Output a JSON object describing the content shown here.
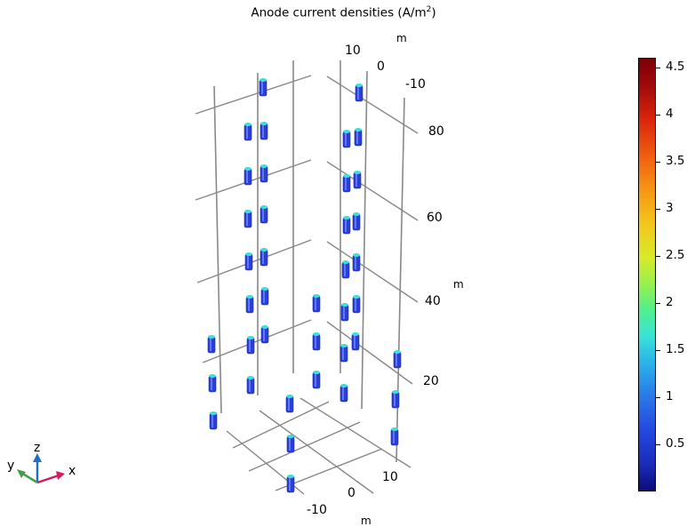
{
  "title": {
    "text": "Anode current densities (A/m",
    "sup": "2",
    "close": ")"
  },
  "axes": {
    "x": {
      "unit": "m",
      "ticks": [
        "-10",
        "0",
        "10"
      ]
    },
    "y": {
      "unit": "m",
      "ticks": [
        "-10",
        "0",
        "10"
      ]
    },
    "z": {
      "unit": "m",
      "ticks": [
        "20",
        "40",
        "60",
        "80"
      ]
    }
  },
  "colorbar": {
    "ticks": [
      "0.5",
      "1",
      "1.5",
      "2",
      "2.5",
      "3",
      "3.5",
      "4",
      "4.5"
    ],
    "min": 0,
    "max": 4.6
  },
  "triad": {
    "x": "x",
    "y": "y",
    "z": "z"
  },
  "colors": {
    "anode_body": "#2a3fd8",
    "anode_top": "#3de0d8",
    "grid_line": "#888888",
    "triad_x": "#d81b60",
    "triad_y": "#43a047",
    "triad_z": "#1e6fc8"
  }
}
